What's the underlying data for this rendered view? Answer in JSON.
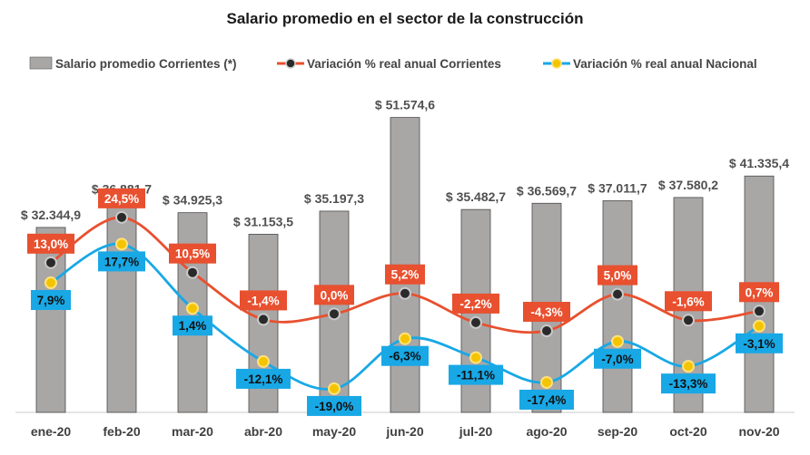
{
  "chart_data": {
    "type": "bar",
    "title": "Salario promedio en el sector de la construcción",
    "categories": [
      "ene-20",
      "feb-20",
      "mar-20",
      "abr-20",
      "may-20",
      "jun-20",
      "jul-20",
      "ago-20",
      "sep-20",
      "oct-20",
      "nov-20"
    ],
    "series": [
      {
        "name": "Salario promedio Corrientes (*)",
        "kind": "bar",
        "color": "#a9a6a6",
        "values": [
          32344.9,
          36881.7,
          34925.3,
          31153.5,
          35197.3,
          51574.6,
          35482.7,
          36569.7,
          37011.7,
          37580.2,
          41335.4
        ],
        "labels": [
          "$ 32.344,9",
          "$ 36.881,7",
          "$ 34.925,3",
          "$ 31.153,5",
          "$ 35.197,3",
          "$ 51.574,6",
          "$ 35.482,7",
          "$ 36.569,7",
          "$ 37.011,7",
          "$ 37.580,2",
          "$ 41.335,4"
        ]
      },
      {
        "name": "Variación % real anual Corrientes",
        "kind": "line",
        "color": "#e8502f",
        "marker_color": "#2a2a2a",
        "values": [
          13.0,
          24.5,
          10.5,
          -1.4,
          0.0,
          5.2,
          -2.2,
          -4.3,
          5.0,
          -1.6,
          0.7
        ],
        "labels": [
          "13,0%",
          "24,5%",
          "10,5%",
          "-1,4%",
          "0,0%",
          "5,2%",
          "-2,2%",
          "-4,3%",
          "5,0%",
          "-1,6%",
          "0,7%"
        ]
      },
      {
        "name": "Variación % real anual Nacional",
        "kind": "line",
        "color": "#18a8e6",
        "marker_color": "#f5c400",
        "values": [
          7.9,
          17.7,
          1.4,
          -12.1,
          -19.0,
          -6.3,
          -11.1,
          -17.4,
          -7.0,
          -13.3,
          -3.1
        ],
        "labels": [
          "7,9%",
          "17,7%",
          "1,4%",
          "-12,1%",
          "-19,0%",
          "-6,3%",
          "-11,1%",
          "-17,4%",
          "-7,0%",
          "-13,3%",
          "-3,1%"
        ]
      }
    ],
    "bar_axis_range": [
      0,
      55000
    ],
    "line_axis_range": [
      -25,
      50
    ],
    "grid": false,
    "legend_position": "top"
  }
}
